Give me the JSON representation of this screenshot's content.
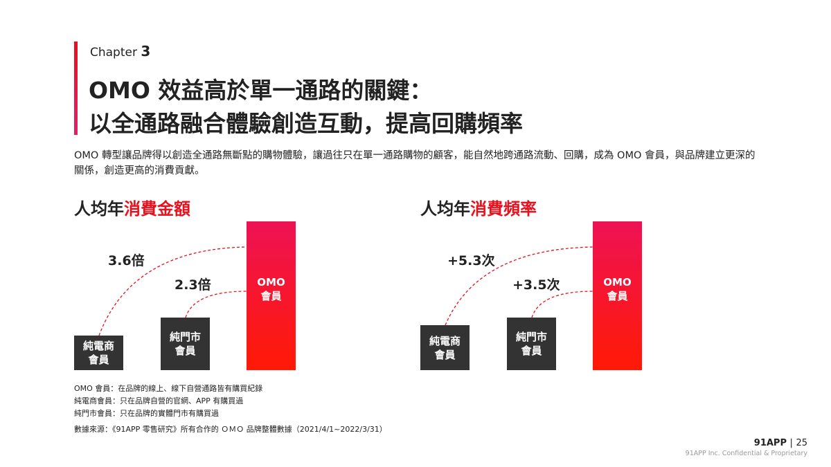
{
  "header": {
    "chapter_label": "Chapter",
    "chapter_number": "3",
    "title_lines": [
      "OMO 效益高於單一通路的關鍵：",
      "以全通路融合體驗創造互動，提高回購頻率"
    ]
  },
  "intro": "OMO 轉型讓品牌得以創造全通路無斷點的購物體驗，讓過往只在單一通路購物的顧客，能自然地跨通路流動、回購，成為 OMO 會員，與品牌建立更深的關係，創造更高的消費貢獻。",
  "panels": [
    {
      "title_prefix": "人均年",
      "title_highlight": "消費金額",
      "bars": [
        {
          "lines": [
            "純電商",
            "會員"
          ]
        },
        {
          "lines": [
            "純門市",
            "會員"
          ]
        },
        {
          "lines": [
            "OMO",
            "會員"
          ]
        }
      ],
      "multipliers": [
        "3.6倍",
        "2.3倍"
      ]
    },
    {
      "title_prefix": "人均年",
      "title_highlight": "消費頻率",
      "bars": [
        {
          "lines": [
            "純電商",
            "會員"
          ]
        },
        {
          "lines": [
            "純門市",
            "會員"
          ]
        },
        {
          "lines": [
            "OMO",
            "會員"
          ]
        }
      ],
      "multipliers": [
        "+5.3次",
        "+3.5次"
      ]
    }
  ],
  "notes": [
    "OMO 會員：在品牌的線上、線下自營通路皆有購買紀錄",
    "純電商會員：只在品牌自營的官網、APP 有購買過",
    "純門市會員：只在品牌的實體門市有購買過"
  ],
  "source": "數據來源：《91APP 零售研究》所有合作的 ＯＭＯ 品牌整體數據（2021/4/1~2022/3/31）",
  "footer": {
    "brand": "91APP",
    "page": "25",
    "confidential": "91APP Inc. Confidential & Proprietary"
  }
}
